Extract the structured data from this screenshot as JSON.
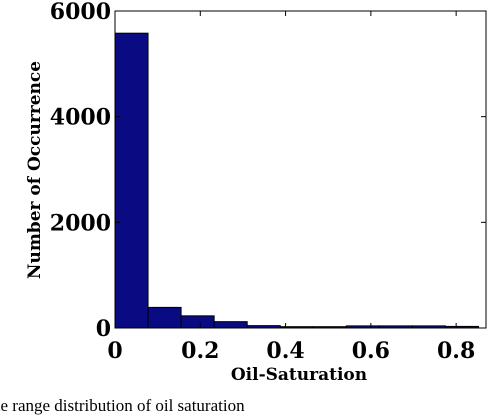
{
  "chart_data": {
    "type": "bar",
    "title": "",
    "xlabel": "Oil-Saturation",
    "ylabel": "Number of Occurrence",
    "xlim": [
      0,
      0.87
    ],
    "ylim": [
      0,
      6000
    ],
    "bin_edges": [
      0,
      0.0775,
      0.155,
      0.2325,
      0.31,
      0.3875,
      0.465,
      0.5425,
      0.62,
      0.6975,
      0.775,
      0.8525
    ],
    "values": [
      5580,
      390,
      230,
      120,
      45,
      25,
      25,
      40,
      40,
      40,
      30
    ],
    "xticks": [
      "0",
      "0.2",
      "0.4",
      "0.6",
      "0.8"
    ],
    "xtick_values": [
      0,
      0.2,
      0.4,
      0.6,
      0.8
    ],
    "yticks": [
      "0",
      "2000",
      "4000",
      "6000"
    ],
    "ytick_values": [
      0,
      2000,
      4000,
      6000
    ],
    "bar_color": "#0a0a82",
    "grid": false,
    "legend": "none"
  },
  "caption": "he range distribution of oil saturation"
}
